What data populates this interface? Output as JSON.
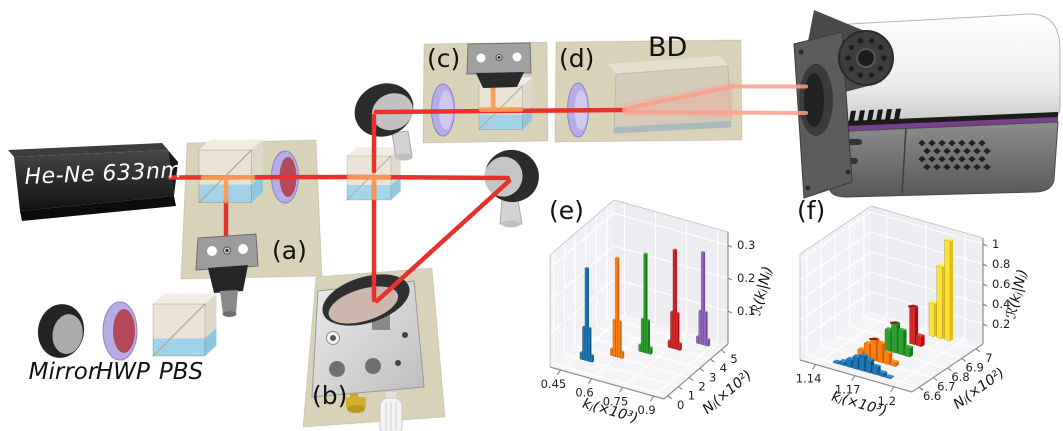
{
  "figure": {
    "laser_label": "He-Ne 633nm",
    "bd_label": "BD",
    "panel_labels": {
      "a": "(a)",
      "b": "(b)",
      "c": "(c)",
      "d": "(d)",
      "e": "(e)",
      "f": "(f)"
    },
    "legend": {
      "mirror": "Mirror",
      "hwp": "HWP",
      "pbs": "PBS"
    },
    "colors": {
      "beam": "#e8312a",
      "beam_hot": "#ff9a55",
      "beam_soft": "#ff9e8a",
      "board": "#d8d2b8",
      "pbs_cyan": "#9fd3ea",
      "hwp_ring": "#b6ade6",
      "hwp_face": "#b2485a",
      "camera_stripe": "#7a3f8f",
      "camera_button": "#7ecfc0"
    }
  },
  "chart_data": [
    {
      "id": "e",
      "type": "bar",
      "projection": "3d",
      "title": "",
      "xlabel": "kⱼ(×10³)",
      "ylabel": "Nⱼ(×10²)",
      "zlabel": "ℛ(kⱼ|Nⱼ)",
      "x_range": [
        0.4,
        0.95
      ],
      "y_range": [
        -0.35,
        5.65
      ],
      "z_range": [
        0,
        0.34
      ],
      "x_ticks": [
        {
          "v": 0.45,
          "label": "0.45"
        },
        {
          "v": 0.6,
          "label": "0.6"
        },
        {
          "v": 0.75,
          "label": "0.75"
        },
        {
          "v": 0.9,
          "label": "0.9"
        }
      ],
      "y_ticks": [
        {
          "v": 0,
          "label": "0"
        },
        {
          "v": 1,
          "label": "1"
        },
        {
          "v": 2,
          "label": "2"
        },
        {
          "v": 3,
          "label": "3"
        },
        {
          "v": 4,
          "label": "4"
        },
        {
          "v": 5,
          "label": "5"
        }
      ],
      "z_ticks": [
        {
          "v": 0.1,
          "label": "0.1"
        },
        {
          "v": 0.2,
          "label": "0.2"
        },
        {
          "v": 0.3,
          "label": "0.3"
        }
      ],
      "grid": true,
      "bar_width": 0.012,
      "bar_depth": 0.14,
      "series": [
        {
          "name": "N=1",
          "color": "#1f77b4",
          "y": 1,
          "bars": [
            {
              "x": 0.481,
              "h": 0.02
            },
            {
              "x": 0.493,
              "h": 0.1
            },
            {
              "x": 0.505,
              "h": 0.28
            },
            {
              "x": 0.517,
              "h": 0.1
            },
            {
              "x": 0.529,
              "h": 0.02
            }
          ]
        },
        {
          "name": "N=2",
          "color": "#ff7f0e",
          "y": 2,
          "bars": [
            {
              "x": 0.576,
              "h": 0.02
            },
            {
              "x": 0.588,
              "h": 0.11
            },
            {
              "x": 0.6,
              "h": 0.3
            },
            {
              "x": 0.612,
              "h": 0.11
            },
            {
              "x": 0.624,
              "h": 0.02
            }
          ]
        },
        {
          "name": "N=3",
          "color": "#2ca02c",
          "y": 3,
          "bars": [
            {
              "x": 0.661,
              "h": 0.02
            },
            {
              "x": 0.673,
              "h": 0.1
            },
            {
              "x": 0.685,
              "h": 0.3
            },
            {
              "x": 0.697,
              "h": 0.1
            },
            {
              "x": 0.709,
              "h": 0.02
            }
          ]
        },
        {
          "name": "N=4",
          "color": "#d62728",
          "y": 4,
          "bars": [
            {
              "x": 0.751,
              "h": 0.02
            },
            {
              "x": 0.763,
              "h": 0.11
            },
            {
              "x": 0.775,
              "h": 0.3
            },
            {
              "x": 0.787,
              "h": 0.11
            },
            {
              "x": 0.799,
              "h": 0.02
            }
          ]
        },
        {
          "name": "N=5",
          "color": "#9467bd",
          "y": 5,
          "bars": [
            {
              "x": 0.836,
              "h": 0.02
            },
            {
              "x": 0.848,
              "h": 0.1
            },
            {
              "x": 0.86,
              "h": 0.28
            },
            {
              "x": 0.872,
              "h": 0.1
            },
            {
              "x": 0.884,
              "h": 0.02
            }
          ]
        }
      ],
      "err_marks": []
    },
    {
      "id": "f",
      "type": "bar",
      "projection": "3d",
      "title": "",
      "xlabel": "kⱼ(×10³)",
      "ylabel": "Nⱼ(×10²)",
      "zlabel": "ℛ(kⱼ|Nⱼ)",
      "x_range": [
        1.128,
        1.214
      ],
      "y_range": [
        6.55,
        7.05
      ],
      "z_range": [
        0,
        1.06
      ],
      "x_ticks": [
        {
          "v": 1.14,
          "label": "1.14"
        },
        {
          "v": 1.17,
          "label": "1.17"
        },
        {
          "v": 1.2,
          "label": "1.2"
        }
      ],
      "y_ticks": [
        {
          "v": 6.6,
          "label": "6.6"
        },
        {
          "v": 6.7,
          "label": "6.7"
        },
        {
          "v": 6.8,
          "label": "6.8"
        },
        {
          "v": 6.9,
          "label": "6.9"
        },
        {
          "v": 7,
          "label": "7"
        }
      ],
      "z_ticks": [
        {
          "v": 0.2,
          "label": "0.2"
        },
        {
          "v": 0.4,
          "label": "0.4"
        },
        {
          "v": 0.6,
          "label": "0.6"
        },
        {
          "v": 0.8,
          "label": "0.8"
        },
        {
          "v": 1,
          "label": "1"
        }
      ],
      "grid": true,
      "bar_width": 0.0042,
      "bar_depth": 0.022,
      "series": [
        {
          "name": "N=6.6",
          "color": "#1f77b4",
          "y": 6.6,
          "bars": [
            {
              "x": 1.15,
              "h": 0.01
            },
            {
              "x": 1.155,
              "h": 0.035
            },
            {
              "x": 1.16,
              "h": 0.075
            },
            {
              "x": 1.165,
              "h": 0.12
            },
            {
              "x": 1.17,
              "h": 0.15
            },
            {
              "x": 1.175,
              "h": 0.125
            },
            {
              "x": 1.18,
              "h": 0.08
            },
            {
              "x": 1.185,
              "h": 0.035
            },
            {
              "x": 1.19,
              "h": 0.012
            }
          ]
        },
        {
          "name": "N=6.7",
          "color": "#ff7f0e",
          "y": 6.7,
          "bars": [
            {
              "x": 1.158,
              "h": 0.07
            },
            {
              "x": 1.163,
              "h": 0.15
            },
            {
              "x": 1.168,
              "h": 0.21
            },
            {
              "x": 1.173,
              "h": 0.19
            },
            {
              "x": 1.178,
              "h": 0.11
            },
            {
              "x": 1.183,
              "h": 0.04
            }
          ]
        },
        {
          "name": "N=6.8",
          "color": "#2ca02c",
          "y": 6.8,
          "bars": [
            {
              "x": 1.168,
              "h": 0.21
            },
            {
              "x": 1.173,
              "h": 0.29
            },
            {
              "x": 1.178,
              "h": 0.24
            },
            {
              "x": 1.183,
              "h": 0.09
            }
          ]
        },
        {
          "name": "N=6.9",
          "color": "#d62728",
          "y": 6.9,
          "bars": [
            {
              "x": 1.176,
              "h": 0.37
            },
            {
              "x": 1.181,
              "h": 0.1
            }
          ]
        },
        {
          "name": "N=7",
          "color": "#ffe135",
          "y": 7.0,
          "bars": [
            {
              "x": 1.18,
              "h": 0.33
            },
            {
              "x": 1.186,
              "h": 0.72
            },
            {
              "x": 1.192,
              "h": 1.0
            }
          ]
        }
      ],
      "err_marks": [
        {
          "x": 1.168,
          "y": 6.7,
          "z": 0.215
        },
        {
          "x": 1.173,
          "y": 6.8,
          "z": 0.3
        },
        {
          "x": 1.176,
          "y": 6.9,
          "z": 0.38
        }
      ]
    }
  ]
}
